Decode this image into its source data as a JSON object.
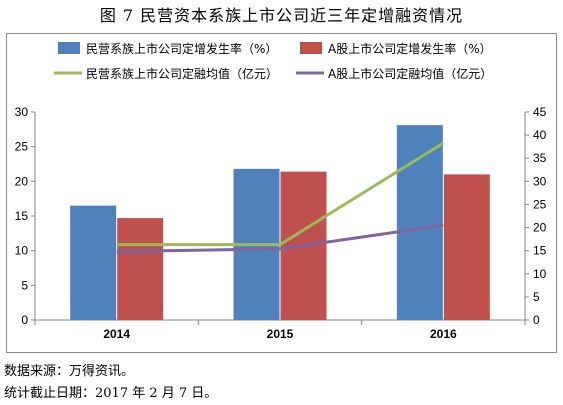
{
  "figure": {
    "title": "图 7  民营资本系族上市公司近三年定增融资情况",
    "source": "数据来源：万得资讯。",
    "cutoff": "统计截止日期：2017 年 2 月 7 日。"
  },
  "chart_data": {
    "type": "bar",
    "categories": [
      "2014",
      "2015",
      "2016"
    ],
    "left_axis": {
      "ylim": [
        0,
        30
      ],
      "ticks": [
        "0",
        "5",
        "10",
        "15",
        "20",
        "25",
        "30"
      ]
    },
    "right_axis": {
      "ylim": [
        0,
        45
      ],
      "ticks": [
        "0",
        "5",
        "10",
        "15",
        "20",
        "25",
        "30",
        "35",
        "40",
        "45"
      ]
    },
    "series": [
      {
        "name": "民营系族上市公司定增发生率（%）",
        "kind": "bar",
        "axis": "left",
        "color": "#4f81bd",
        "values": [
          16.5,
          21.8,
          28.1
        ]
      },
      {
        "name": "A股上市公司定增发生率（%）",
        "kind": "bar",
        "axis": "left",
        "color": "#c0504d",
        "values": [
          14.7,
          21.4,
          21.0
        ]
      },
      {
        "name": "民营系族上市公司定融均值（亿元）",
        "kind": "line",
        "axis": "right",
        "color": "#9bbb59",
        "values": [
          16.3,
          16.3,
          38.3
        ]
      },
      {
        "name": "A股上市公司定融均值（亿元）",
        "kind": "line",
        "axis": "right",
        "color": "#8064a2",
        "values": [
          14.8,
          15.4,
          20.5
        ]
      }
    ],
    "legend_position": "top",
    "grid": false
  }
}
